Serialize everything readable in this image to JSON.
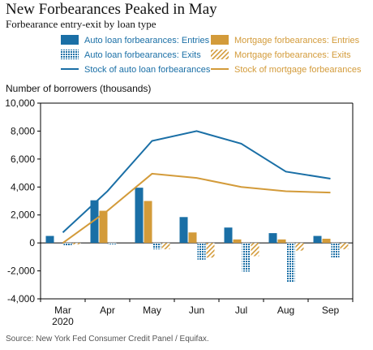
{
  "title": "New Forbearances Peaked in May",
  "subtitle": "Forbearance entry-exit by loan type",
  "source": "Source: New York Fed Consumer Credit Panel / Equifax.",
  "chart_data": {
    "type": "bar",
    "title": "New Forbearances Peaked in May",
    "subtitle": "Forbearance entry-exit by loan type",
    "ylabel": "Number of borrowers (thousands)",
    "xlabel": "",
    "ylim": [
      -4000,
      10000
    ],
    "yticks": [
      -4000,
      -2000,
      0,
      2000,
      4000,
      6000,
      8000,
      10000
    ],
    "ytick_labels": [
      "-4,000",
      "-2,000",
      "0",
      "2,000",
      "4,000",
      "6,000",
      "8,000",
      "10,000"
    ],
    "categories": [
      "Mar",
      "Apr",
      "May",
      "Jun",
      "Jul",
      "Aug",
      "Sep"
    ],
    "category_sublabels": [
      "2020",
      "",
      "",
      "",
      "",
      "",
      ""
    ],
    "grid": false,
    "legend_position": "top",
    "bar_series": [
      {
        "name": "Auto loan forbearances: Entries",
        "color": "#1a6fa6",
        "pattern": "solid",
        "values": [
          500,
          3050,
          3950,
          1850,
          1100,
          700,
          500
        ]
      },
      {
        "name": "Mortgage forbearances: Entries",
        "color": "#d39b3a",
        "pattern": "solid",
        "values": [
          0,
          2300,
          3000,
          750,
          250,
          250,
          300
        ]
      },
      {
        "name": "Auto loan forbearances: Exits",
        "color": "#1a6fa6",
        "pattern": "dots",
        "values": [
          -200,
          -100,
          -450,
          -1200,
          -2050,
          -2800,
          -1050
        ]
      },
      {
        "name": "Mortgage forbearances: Exits",
        "color": "#d39b3a",
        "pattern": "hatch",
        "values": [
          -100,
          0,
          -450,
          -1050,
          -950,
          -550,
          -450
        ]
      }
    ],
    "line_series": [
      {
        "name": "Stock of auto loan forbearances",
        "color": "#1a6fa6",
        "values": [
          750,
          3700,
          7300,
          8000,
          7100,
          5100,
          4600
        ]
      },
      {
        "name": "Stock of mortgage forbearances",
        "color": "#d39b3a",
        "values": [
          0,
          2300,
          4950,
          4650,
          4000,
          3700,
          3600
        ]
      }
    ]
  }
}
